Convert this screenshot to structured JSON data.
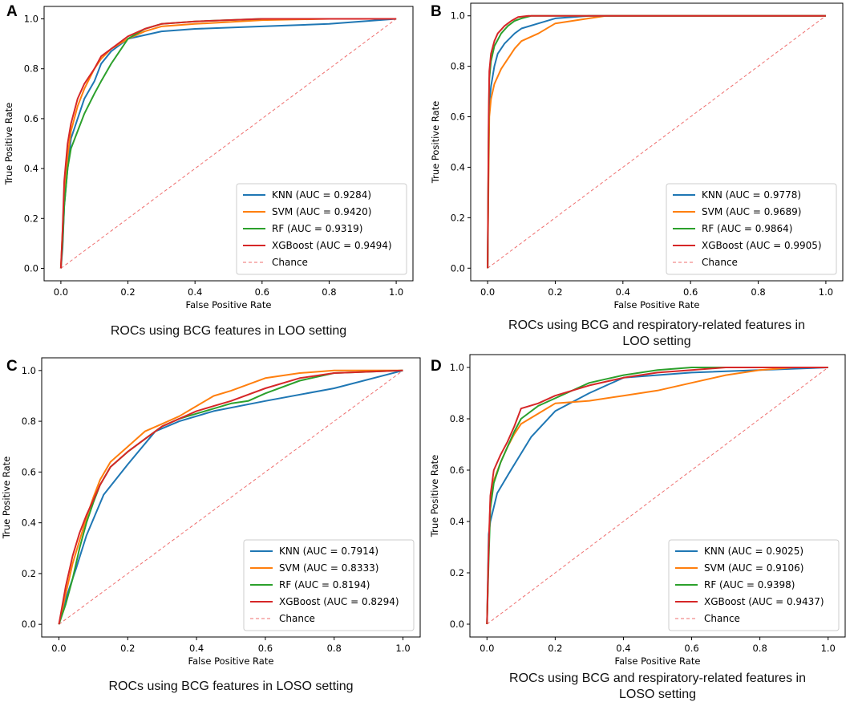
{
  "figure": {
    "colors": {
      "KNN": "#1f77b4",
      "SVM": "#ff7f0e",
      "RF": "#2ca02c",
      "XGBoost": "#d62728",
      "Chance": "#ef6f6f"
    }
  },
  "chart_data": [
    {
      "panel": "A",
      "type": "line",
      "caption": [
        "ROCs using BCG features in LOO setting"
      ],
      "xlabel": "False Positive Rate",
      "ylabel": "True Positive Rate",
      "xlim": [
        0.0,
        1.0
      ],
      "ylim": [
        0.0,
        1.0
      ],
      "xticks": [
        "0.0",
        "0.2",
        "0.4",
        "0.6",
        "0.8",
        "1.0"
      ],
      "yticks": [
        "0.0",
        "0.2",
        "0.4",
        "0.6",
        "0.8",
        "1.0"
      ],
      "legend_position": "lower-right",
      "series": [
        {
          "name": "KNN",
          "label": "KNN (AUC = 0.9284)",
          "x": [
            0,
            0.005,
            0.01,
            0.02,
            0.03,
            0.05,
            0.07,
            0.1,
            0.12,
            0.15,
            0.2,
            0.3,
            0.4,
            0.6,
            0.8,
            1.0
          ],
          "y": [
            0,
            0.08,
            0.25,
            0.4,
            0.52,
            0.6,
            0.68,
            0.75,
            0.82,
            0.87,
            0.92,
            0.95,
            0.96,
            0.97,
            0.98,
            1.0
          ]
        },
        {
          "name": "SVM",
          "label": "SVM (AUC = 0.9420)",
          "x": [
            0,
            0.005,
            0.01,
            0.02,
            0.03,
            0.05,
            0.07,
            0.1,
            0.12,
            0.15,
            0.2,
            0.25,
            0.3,
            0.4,
            0.6,
            0.8,
            1.0
          ],
          "y": [
            0,
            0.15,
            0.3,
            0.45,
            0.55,
            0.65,
            0.72,
            0.8,
            0.84,
            0.88,
            0.92,
            0.95,
            0.97,
            0.98,
            0.995,
            1.0,
            1.0
          ]
        },
        {
          "name": "RF",
          "label": "RF (AUC = 0.9319)",
          "x": [
            0,
            0.005,
            0.01,
            0.02,
            0.03,
            0.05,
            0.07,
            0.1,
            0.12,
            0.15,
            0.17,
            0.2,
            0.25,
            0.3,
            0.4,
            0.6,
            1.0
          ],
          "y": [
            0,
            0.1,
            0.25,
            0.4,
            0.48,
            0.55,
            0.62,
            0.7,
            0.75,
            0.82,
            0.86,
            0.92,
            0.96,
            0.98,
            0.99,
            1.0,
            1.0
          ]
        },
        {
          "name": "XGBoost",
          "label": "XGBoost (AUC = 0.9494)",
          "x": [
            0,
            0.005,
            0.01,
            0.02,
            0.03,
            0.05,
            0.07,
            0.1,
            0.12,
            0.15,
            0.18,
            0.2,
            0.25,
            0.3,
            0.4,
            0.6,
            1.0
          ],
          "y": [
            0,
            0.15,
            0.35,
            0.5,
            0.58,
            0.68,
            0.74,
            0.8,
            0.85,
            0.88,
            0.91,
            0.93,
            0.96,
            0.98,
            0.99,
            1.0,
            1.0
          ]
        },
        {
          "name": "Chance",
          "label": "Chance",
          "x": [
            0,
            1
          ],
          "y": [
            0,
            1
          ],
          "dashed": true
        }
      ]
    },
    {
      "panel": "B",
      "type": "line",
      "caption": [
        "ROCs using BCG and respiratory-related features in",
        "LOO setting"
      ],
      "xlabel": "False Positive Rate",
      "ylabel": "True Positive Rate",
      "xlim": [
        0.0,
        1.0
      ],
      "ylim": [
        0.0,
        1.0
      ],
      "xticks": [
        "0.0",
        "0.2",
        "0.4",
        "0.6",
        "0.8",
        "1.0"
      ],
      "yticks": [
        "0.0",
        "0.2",
        "0.4",
        "0.6",
        "0.8",
        "1.0"
      ],
      "legend_position": "lower-right",
      "series": [
        {
          "name": "KNN",
          "label": "KNN (AUC = 0.9778)",
          "x": [
            0,
            0.003,
            0.005,
            0.01,
            0.02,
            0.03,
            0.05,
            0.08,
            0.1,
            0.15,
            0.2,
            0.3,
            1.0
          ],
          "y": [
            0,
            0.5,
            0.65,
            0.72,
            0.8,
            0.85,
            0.89,
            0.93,
            0.95,
            0.97,
            0.99,
            1.0,
            1.0
          ]
        },
        {
          "name": "SVM",
          "label": "SVM (AUC = 0.9689)",
          "x": [
            0,
            0.003,
            0.005,
            0.01,
            0.02,
            0.04,
            0.06,
            0.08,
            0.1,
            0.15,
            0.2,
            0.3,
            0.35,
            1.0
          ],
          "y": [
            0,
            0.4,
            0.6,
            0.67,
            0.73,
            0.79,
            0.83,
            0.87,
            0.9,
            0.93,
            0.97,
            0.99,
            1.0,
            1.0
          ]
        },
        {
          "name": "RF",
          "label": "RF (AUC = 0.9864)",
          "x": [
            0,
            0.003,
            0.005,
            0.01,
            0.02,
            0.04,
            0.06,
            0.08,
            0.1,
            0.13,
            1.0
          ],
          "y": [
            0,
            0.55,
            0.75,
            0.82,
            0.88,
            0.93,
            0.96,
            0.98,
            0.99,
            1.0,
            1.0
          ]
        },
        {
          "name": "XGBoost",
          "label": "XGBoost (AUC = 0.9905)",
          "x": [
            0,
            0.003,
            0.005,
            0.01,
            0.02,
            0.03,
            0.05,
            0.07,
            0.09,
            0.12,
            1.0
          ],
          "y": [
            0,
            0.6,
            0.78,
            0.85,
            0.9,
            0.93,
            0.96,
            0.98,
            0.995,
            1.0,
            1.0
          ]
        },
        {
          "name": "Chance",
          "label": "Chance",
          "x": [
            0,
            1
          ],
          "y": [
            0,
            1
          ],
          "dashed": true
        }
      ]
    },
    {
      "panel": "C",
      "type": "line",
      "caption": [
        "ROCs using BCG features in LOSO setting"
      ],
      "xlabel": "False Positive Rate",
      "ylabel": "True Positive Rate",
      "xlim": [
        0.0,
        1.0
      ],
      "ylim": [
        0.0,
        1.0
      ],
      "xticks": [
        "0.0",
        "0.2",
        "0.4",
        "0.6",
        "0.8",
        "1.0"
      ],
      "yticks": [
        "0.0",
        "0.2",
        "0.4",
        "0.6",
        "0.8",
        "1.0"
      ],
      "legend_position": "lower-right",
      "series": [
        {
          "name": "KNN",
          "label": "KNN (AUC = 0.7914)",
          "x": [
            0,
            0.02,
            0.05,
            0.08,
            0.13,
            0.2,
            0.28,
            0.35,
            0.45,
            0.6,
            0.8,
            1.0
          ],
          "y": [
            0,
            0.1,
            0.22,
            0.35,
            0.51,
            0.63,
            0.76,
            0.8,
            0.84,
            0.88,
            0.93,
            1.0
          ]
        },
        {
          "name": "SVM",
          "label": "SVM (AUC = 0.8333)",
          "x": [
            0,
            0.02,
            0.04,
            0.06,
            0.08,
            0.1,
            0.12,
            0.15,
            0.2,
            0.25,
            0.3,
            0.35,
            0.4,
            0.45,
            0.5,
            0.6,
            0.7,
            0.8,
            1.0
          ],
          "y": [
            0,
            0.12,
            0.24,
            0.33,
            0.42,
            0.5,
            0.57,
            0.64,
            0.7,
            0.76,
            0.79,
            0.82,
            0.86,
            0.9,
            0.92,
            0.97,
            0.99,
            1.0,
            1.0
          ]
        },
        {
          "name": "RF",
          "label": "RF (AUC = 0.8194)",
          "x": [
            0,
            0.02,
            0.04,
            0.06,
            0.08,
            0.1,
            0.12,
            0.15,
            0.2,
            0.25,
            0.3,
            0.35,
            0.4,
            0.45,
            0.5,
            0.55,
            0.6,
            0.7,
            0.8,
            1.0
          ],
          "y": [
            0,
            0.08,
            0.18,
            0.3,
            0.4,
            0.48,
            0.55,
            0.62,
            0.68,
            0.73,
            0.78,
            0.81,
            0.83,
            0.85,
            0.87,
            0.88,
            0.91,
            0.96,
            0.99,
            1.0
          ]
        },
        {
          "name": "XGBoost",
          "label": "XGBoost (AUC = 0.8294)",
          "x": [
            0,
            0.02,
            0.04,
            0.06,
            0.08,
            0.1,
            0.12,
            0.15,
            0.2,
            0.25,
            0.3,
            0.35,
            0.4,
            0.45,
            0.5,
            0.6,
            0.7,
            0.8,
            1.0
          ],
          "y": [
            0,
            0.15,
            0.27,
            0.36,
            0.43,
            0.49,
            0.55,
            0.62,
            0.68,
            0.73,
            0.78,
            0.81,
            0.84,
            0.86,
            0.88,
            0.93,
            0.97,
            0.99,
            1.0
          ]
        },
        {
          "name": "Chance",
          "label": "Chance",
          "x": [
            0,
            1
          ],
          "y": [
            0,
            1
          ],
          "dashed": true
        }
      ]
    },
    {
      "panel": "D",
      "type": "line",
      "caption": [
        "ROCs using BCG and respiratory-related features in",
        "LOSO setting"
      ],
      "xlabel": "False Positive Rate",
      "ylabel": "True Positive Rate",
      "xlim": [
        0.0,
        1.0
      ],
      "ylim": [
        0.0,
        1.0
      ],
      "xticks": [
        "0.0",
        "0.2",
        "0.4",
        "0.6",
        "0.8",
        "1.0"
      ],
      "yticks": [
        "0.0",
        "0.2",
        "0.4",
        "0.6",
        "0.8",
        "1.0"
      ],
      "legend_position": "lower-right",
      "series": [
        {
          "name": "KNN",
          "label": "KNN (AUC = 0.9025)",
          "x": [
            0,
            0.005,
            0.01,
            0.03,
            0.07,
            0.13,
            0.2,
            0.3,
            0.4,
            0.6,
            0.8,
            1.0
          ],
          "y": [
            0,
            0.35,
            0.4,
            0.51,
            0.6,
            0.73,
            0.83,
            0.9,
            0.96,
            0.98,
            0.99,
            1.0
          ]
        },
        {
          "name": "SVM",
          "label": "SVM (AUC = 0.9106)",
          "x": [
            0,
            0.005,
            0.01,
            0.02,
            0.04,
            0.06,
            0.08,
            0.1,
            0.15,
            0.2,
            0.3,
            0.4,
            0.5,
            0.6,
            0.7,
            0.8,
            0.9,
            1.0
          ],
          "y": [
            0,
            0.3,
            0.48,
            0.56,
            0.63,
            0.69,
            0.74,
            0.78,
            0.82,
            0.86,
            0.87,
            0.89,
            0.91,
            0.94,
            0.97,
            0.99,
            1.0,
            1.0
          ]
        },
        {
          "name": "RF",
          "label": "RF (AUC = 0.9398)",
          "x": [
            0,
            0.005,
            0.01,
            0.02,
            0.04,
            0.06,
            0.08,
            0.1,
            0.15,
            0.2,
            0.3,
            0.4,
            0.5,
            0.6,
            0.7,
            1.0
          ],
          "y": [
            0,
            0.25,
            0.45,
            0.55,
            0.63,
            0.69,
            0.75,
            0.8,
            0.85,
            0.88,
            0.94,
            0.97,
            0.99,
            1.0,
            1.0,
            1.0
          ]
        },
        {
          "name": "XGBoost",
          "label": "XGBoost (AUC = 0.9437)",
          "x": [
            0,
            0.005,
            0.01,
            0.02,
            0.04,
            0.06,
            0.08,
            0.1,
            0.15,
            0.2,
            0.3,
            0.4,
            0.5,
            0.6,
            0.7,
            1.0
          ],
          "y": [
            0,
            0.3,
            0.5,
            0.6,
            0.66,
            0.71,
            0.77,
            0.84,
            0.86,
            0.89,
            0.93,
            0.96,
            0.98,
            0.99,
            1.0,
            1.0
          ]
        },
        {
          "name": "Chance",
          "label": "Chance",
          "x": [
            0,
            1
          ],
          "y": [
            0,
            1
          ],
          "dashed": true
        }
      ]
    }
  ]
}
